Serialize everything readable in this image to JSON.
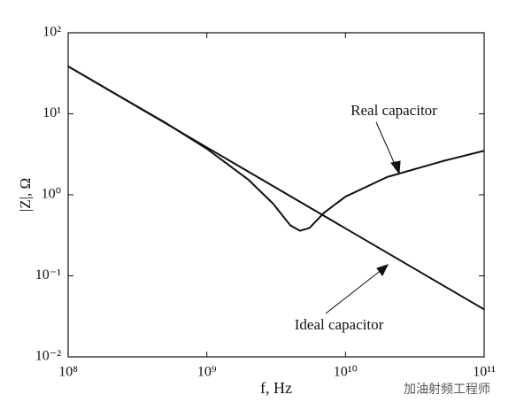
{
  "chart_data": {
    "type": "line",
    "x_label": "f, Hz",
    "y_label": "|Z|, Ω",
    "xlim": [
      100000000,
      100000000000
    ],
    "ylim": [
      0.01,
      100
    ],
    "xscale": "log",
    "yscale": "log",
    "xticks": [
      {
        "value": 100000000,
        "label": "10⁸"
      },
      {
        "value": 1000000000,
        "label": "10⁹"
      },
      {
        "value": 10000000000,
        "label": "10¹⁰"
      },
      {
        "value": 100000000000,
        "label": "10¹¹"
      }
    ],
    "yticks": [
      {
        "value": 0.01,
        "label": "10⁻²"
      },
      {
        "value": 0.1,
        "label": "10⁻¹"
      },
      {
        "value": 1,
        "label": "10⁰"
      },
      {
        "value": 10,
        "label": "10¹"
      },
      {
        "value": 100,
        "label": "10²"
      }
    ],
    "series": [
      {
        "name": "Real capacitor",
        "color": "#111111",
        "x": [
          100000000,
          200000000,
          500000000,
          1000000000,
          2000000000,
          3000000000,
          4000000000,
          4700000000,
          5500000000,
          7000000000,
          10000000000,
          20000000000,
          50000000000,
          100000000000
        ],
        "values": [
          38.5,
          19.3,
          7.8,
          3.7,
          1.53,
          0.78,
          0.42,
          0.36,
          0.39,
          0.6,
          0.95,
          1.66,
          2.6,
          3.5
        ]
      },
      {
        "name": "Ideal capacitor",
        "color": "#111111",
        "x": [
          100000000,
          1000000000,
          10000000000,
          100000000000
        ],
        "values": [
          38.5,
          3.85,
          0.385,
          0.0385
        ]
      }
    ],
    "watermark": "加油射频工程师"
  }
}
